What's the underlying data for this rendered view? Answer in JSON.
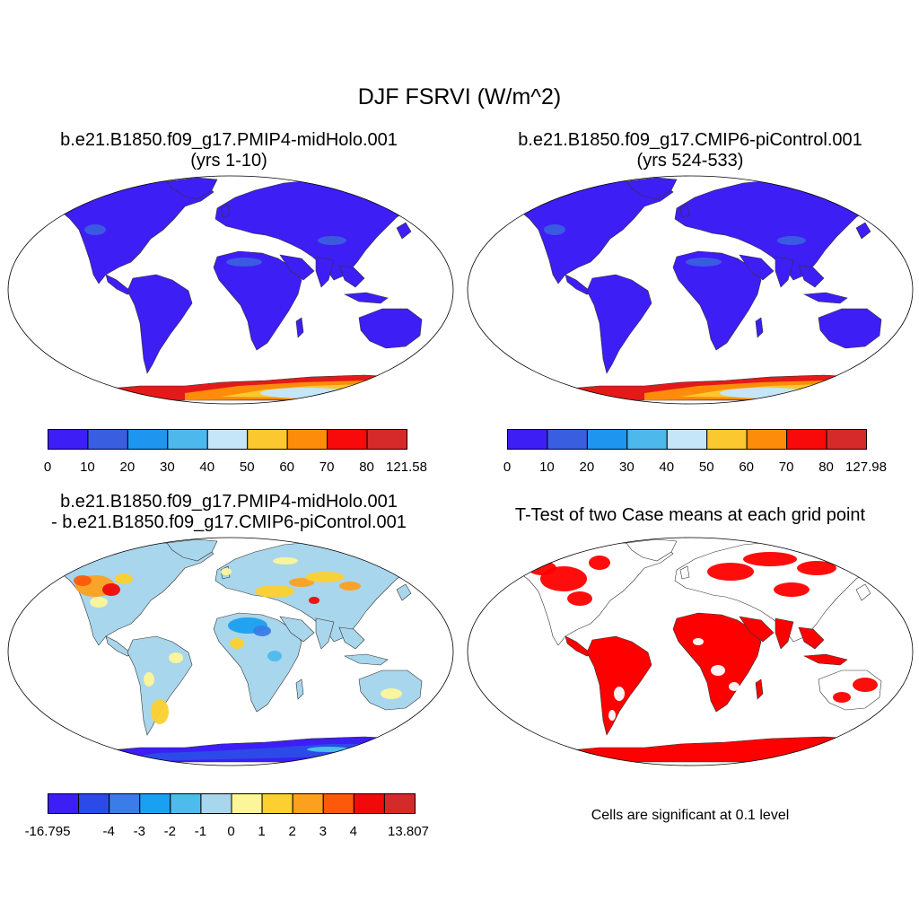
{
  "figure": {
    "title": "DJF FSRVI (W/m^2)"
  },
  "panels": [
    {
      "title_line1": "b.e21.B1850.f09_g17.PMIP4-midHolo.001",
      "title_line2": "(yrs 1-10)",
      "colorbar": {
        "labels": [
          "0",
          "10",
          "20",
          "30",
          "40",
          "50",
          "60",
          "70",
          "80",
          "121.58"
        ],
        "colors": [
          "#3d1ef5",
          "#3a5ee0",
          "#1e96f0",
          "#4db8ec",
          "#c5e5f8",
          "#fcc830",
          "#fc8c0a",
          "#f80a0a",
          "#d42a2a"
        ]
      }
    },
    {
      "title_line1": "b.e21.B1850.f09_g17.CMIP6-piControl.001",
      "title_line2": "(yrs 524-533)",
      "colorbar": {
        "labels": [
          "0",
          "10",
          "20",
          "30",
          "40",
          "50",
          "60",
          "70",
          "80",
          "127.98"
        ],
        "colors": [
          "#3d1ef5",
          "#3a5ee0",
          "#1e96f0",
          "#4db8ec",
          "#c5e5f8",
          "#fcc830",
          "#fc8c0a",
          "#f80a0a",
          "#d42a2a"
        ]
      }
    },
    {
      "title_line1": "b.e21.B1850.f09_g17.PMIP4-midHolo.001",
      "title_line2": "- b.e21.B1850.f09_g17.CMIP6-piControl.001",
      "colorbar": {
        "labels": [
          "-16.795",
          "-4",
          "-3",
          "-2",
          "-1",
          "0",
          "1",
          "2",
          "3",
          "4",
          "13.807"
        ],
        "colors": [
          "#3d1ef5",
          "#2c4ae8",
          "#3a7ce8",
          "#1aa0f0",
          "#4dbcec",
          "#a8d6ec",
          "#fdf59a",
          "#fcd030",
          "#fca020",
          "#fc5a0a",
          "#f00a0a",
          "#d42a2a"
        ]
      }
    },
    {
      "title_line1": "T-Test of two Case means at each grid point",
      "note": "Cells are significant at 0.1 level",
      "significant_color": "#ff0000"
    }
  ],
  "colors": {
    "land_low": "#3d1ef5",
    "land_mid": "#3a5ee0",
    "diff_base": "#a8d6ec",
    "antarctic_red": "#e41a1a",
    "antarctic_orange": "#fc8c0a",
    "antarctic_yellow": "#fcc830",
    "antarctic_pale": "#c5e5f8"
  }
}
